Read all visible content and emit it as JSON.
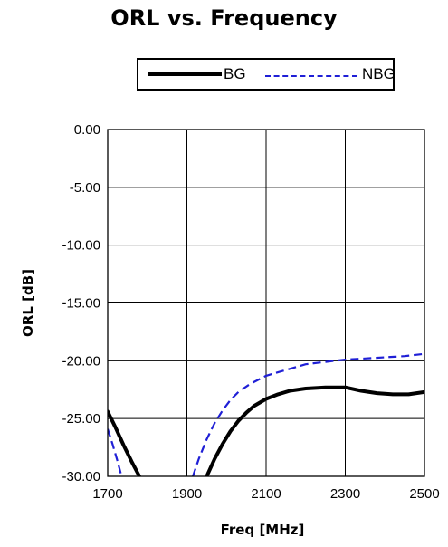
{
  "chart_data": {
    "type": "line",
    "title": "ORL vs. Frequency",
    "xlabel": "Freq [MHz]",
    "ylabel": "ORL [dB]",
    "xlim": [
      1700,
      2500
    ],
    "ylim": [
      -30,
      0
    ],
    "x_ticks": [
      "1700",
      "1900",
      "2100",
      "2300",
      "2500"
    ],
    "y_ticks": [
      "0.00",
      "-5.00",
      "-10.00",
      "-15.00",
      "-20.00",
      "-25.00",
      "-30.00"
    ],
    "grid": true,
    "legend_position": "top",
    "series": [
      {
        "name": "BG",
        "color": "#000000",
        "style": "solid-thick",
        "segments": [
          [
            [
              1700,
              -24.4
            ],
            [
              1720,
              -25.8
            ],
            [
              1740,
              -27.3
            ],
            [
              1760,
              -28.7
            ],
            [
              1780,
              -30.0
            ]
          ],
          [
            [
              1950,
              -30.0
            ],
            [
              1970,
              -28.5
            ],
            [
              1990,
              -27.2
            ],
            [
              2010,
              -26.1
            ],
            [
              2030,
              -25.2
            ],
            [
              2050,
              -24.5
            ],
            [
              2070,
              -23.9
            ],
            [
              2100,
              -23.3
            ],
            [
              2130,
              -22.9
            ],
            [
              2160,
              -22.6
            ],
            [
              2200,
              -22.4
            ],
            [
              2250,
              -22.3
            ],
            [
              2300,
              -22.3
            ],
            [
              2340,
              -22.6
            ],
            [
              2380,
              -22.8
            ],
            [
              2420,
              -22.9
            ],
            [
              2460,
              -22.9
            ],
            [
              2500,
              -22.7
            ]
          ]
        ]
      },
      {
        "name": "NBG",
        "color": "#1f1fd6",
        "style": "dashed",
        "segments": [
          [
            [
              1700,
              -25.9
            ],
            [
              1712,
              -27.2
            ],
            [
              1724,
              -28.6
            ],
            [
              1735,
              -30.0
            ]
          ],
          [
            [
              1915,
              -30.0
            ],
            [
              1930,
              -28.5
            ],
            [
              1950,
              -26.8
            ],
            [
              1970,
              -25.4
            ],
            [
              1990,
              -24.3
            ],
            [
              2010,
              -23.4
            ],
            [
              2030,
              -22.7
            ],
            [
              2060,
              -22.0
            ],
            [
              2100,
              -21.3
            ],
            [
              2150,
              -20.8
            ],
            [
              2200,
              -20.3
            ],
            [
              2250,
              -20.1
            ],
            [
              2300,
              -19.9
            ],
            [
              2350,
              -19.8
            ],
            [
              2400,
              -19.7
            ],
            [
              2450,
              -19.6
            ],
            [
              2500,
              -19.4
            ]
          ]
        ]
      }
    ]
  }
}
